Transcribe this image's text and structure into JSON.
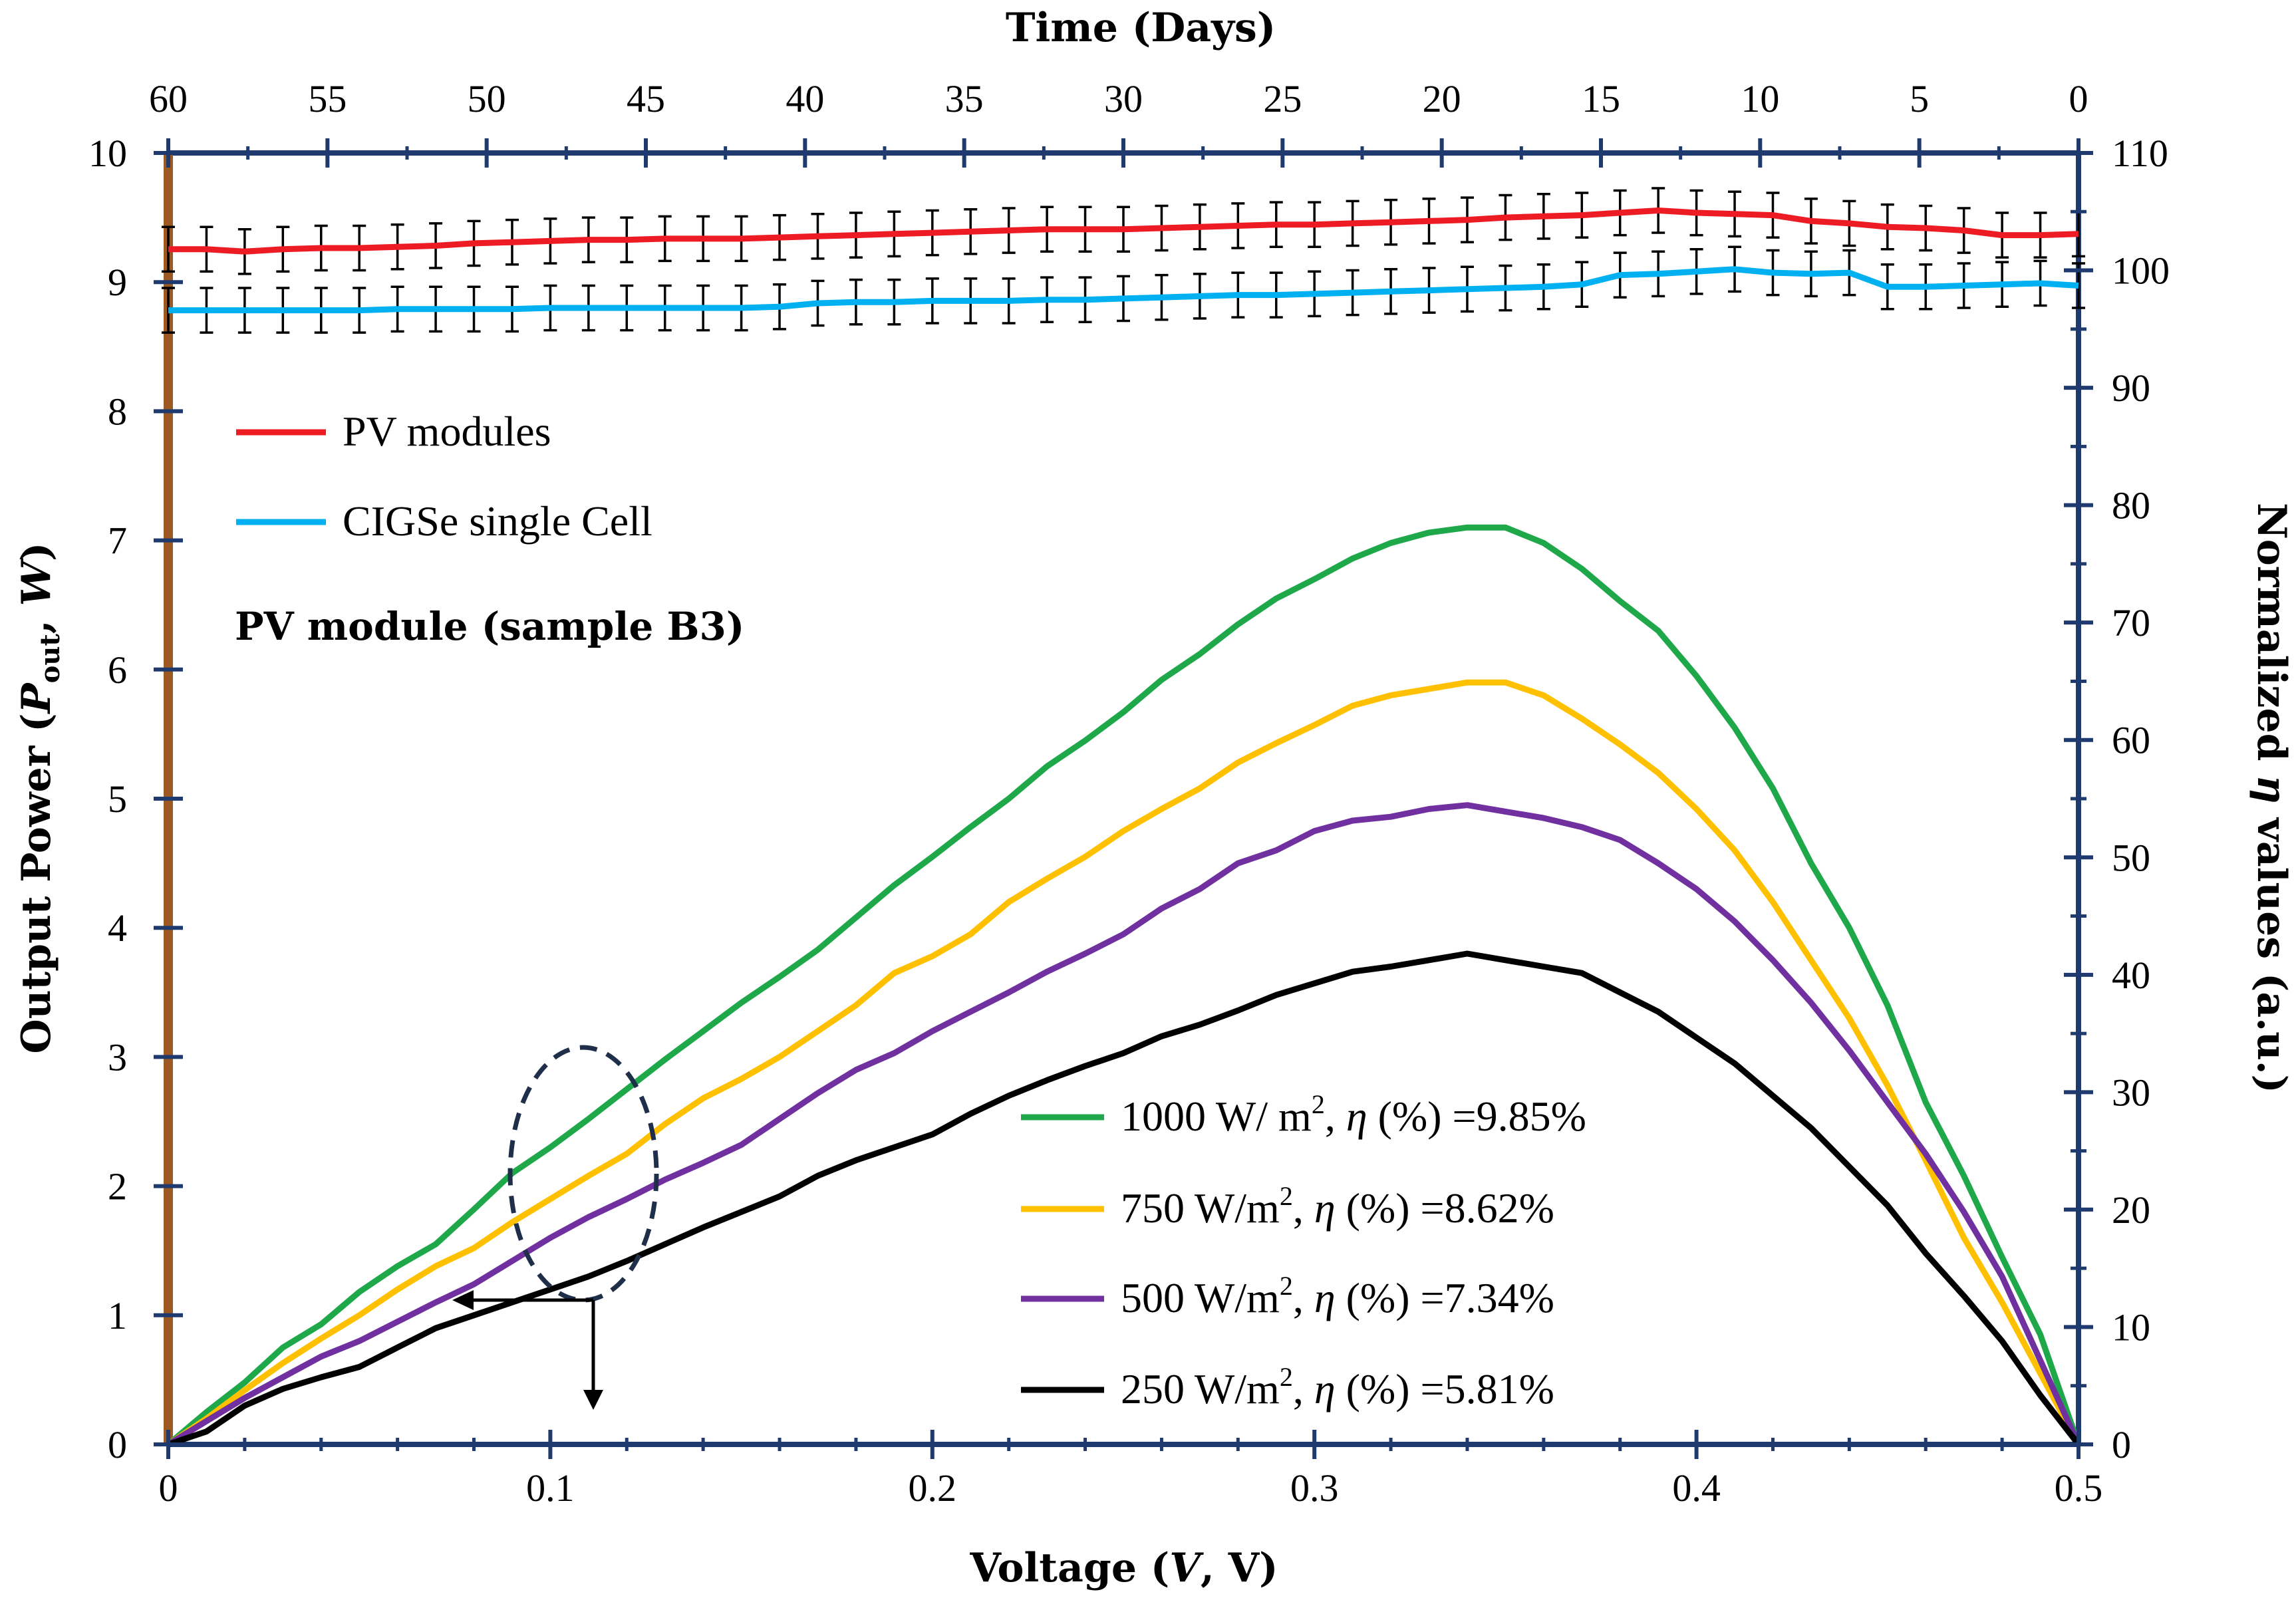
{
  "colors": {
    "left_axis": "#9c5a22",
    "navy_axis": "#1f3a6e",
    "pv_modules": "#ed1c24",
    "cigse_cell": "#00b0f0",
    "g1000": "#1fa84a",
    "g750": "#ffc000",
    "g500": "#7030a0",
    "g250": "#000000",
    "error_bar": "#000000",
    "ellipse": "#1f2f4a"
  },
  "chart_data": {
    "type": "line",
    "title": "",
    "annotation": "PV module (sample B3)",
    "x_bottom": {
      "label": "Voltage (V, V)",
      "label_parts": [
        "Voltage (",
        "V",
        ", V)"
      ],
      "range": [
        0,
        0.5
      ],
      "ticks": [
        0,
        0.1,
        0.2,
        0.3,
        0.4,
        0.5
      ],
      "tick_labels": [
        "0",
        "0.1",
        "0.2",
        "0.3",
        "0.4",
        "0.5"
      ]
    },
    "x_top": {
      "label": "Time (Days)",
      "range": [
        60,
        0
      ],
      "ticks": [
        60,
        55,
        50,
        45,
        40,
        35,
        30,
        25,
        20,
        15,
        10,
        5,
        0
      ],
      "tick_labels": [
        "60",
        "55",
        "50",
        "45",
        "40",
        "35",
        "30",
        "25",
        "20",
        "15",
        "10",
        "5",
        "0"
      ]
    },
    "y_left": {
      "label": "Output Power (Pout, W)",
      "label_parts": [
        "Output Power (",
        "P",
        "out",
        ", ",
        "W",
        ")"
      ],
      "range": [
        0,
        10
      ],
      "ticks": [
        0,
        1,
        2,
        3,
        4,
        5,
        6,
        7,
        8,
        9,
        10
      ],
      "tick_labels": [
        "0",
        "1",
        "2",
        "3",
        "4",
        "5",
        "6",
        "7",
        "8",
        "9",
        "10"
      ]
    },
    "y_right": {
      "label": "Normalized η values (a.u.)",
      "label_parts": [
        "Normalized ",
        "η",
        " values (a.u.)"
      ],
      "range": [
        0,
        110
      ],
      "ticks": [
        0,
        10,
        20,
        30,
        40,
        50,
        60,
        70,
        80,
        90,
        100,
        110
      ],
      "tick_labels": [
        "0",
        "10",
        "20",
        "30",
        "40",
        "50",
        "60",
        "70",
        "80",
        "90",
        "100",
        "110"
      ]
    },
    "power_series": [
      {
        "name": "1000 W/ m2, η (%) =9.85%",
        "legend_parts": [
          "1000 W/ m",
          "2",
          ", ",
          "η",
          " (%) =9.85%"
        ],
        "color_key": "g1000",
        "x": [
          0,
          0.01,
          0.02,
          0.03,
          0.04,
          0.05,
          0.06,
          0.07,
          0.08,
          0.09,
          0.1,
          0.11,
          0.12,
          0.13,
          0.14,
          0.15,
          0.16,
          0.17,
          0.18,
          0.19,
          0.2,
          0.21,
          0.22,
          0.23,
          0.24,
          0.25,
          0.26,
          0.27,
          0.28,
          0.29,
          0.3,
          0.31,
          0.32,
          0.33,
          0.34,
          0.35,
          0.36,
          0.37,
          0.38,
          0.39,
          0.4,
          0.41,
          0.42,
          0.43,
          0.44,
          0.45,
          0.46,
          0.47,
          0.48,
          0.49,
          0.5
        ],
        "y": [
          0,
          0.25,
          0.48,
          0.75,
          0.93,
          1.18,
          1.38,
          1.55,
          1.82,
          2.1,
          2.3,
          2.52,
          2.75,
          2.98,
          3.2,
          3.42,
          3.62,
          3.83,
          4.08,
          4.33,
          4.55,
          4.78,
          5.0,
          5.25,
          5.45,
          5.67,
          5.92,
          6.12,
          6.35,
          6.55,
          6.7,
          6.86,
          6.98,
          7.06,
          7.1,
          7.1,
          6.98,
          6.78,
          6.53,
          6.3,
          5.95,
          5.55,
          5.08,
          4.5,
          4.0,
          3.4,
          2.65,
          2.08,
          1.45,
          0.85,
          0
        ]
      },
      {
        "name": "750 W/m2, η (%) =8.62%",
        "legend_parts": [
          "750 W/m",
          "2",
          ", ",
          "η",
          " (%) =8.62%"
        ],
        "color_key": "g750",
        "x": [
          0,
          0.01,
          0.02,
          0.03,
          0.04,
          0.05,
          0.06,
          0.07,
          0.08,
          0.09,
          0.1,
          0.11,
          0.12,
          0.13,
          0.14,
          0.15,
          0.16,
          0.17,
          0.18,
          0.19,
          0.2,
          0.21,
          0.22,
          0.23,
          0.24,
          0.25,
          0.26,
          0.27,
          0.28,
          0.29,
          0.3,
          0.31,
          0.32,
          0.33,
          0.34,
          0.35,
          0.36,
          0.37,
          0.38,
          0.39,
          0.4,
          0.41,
          0.42,
          0.43,
          0.44,
          0.45,
          0.46,
          0.47,
          0.48,
          0.49,
          0.5
        ],
        "y": [
          0,
          0.2,
          0.42,
          0.63,
          0.82,
          1.0,
          1.2,
          1.38,
          1.52,
          1.72,
          1.9,
          2.08,
          2.25,
          2.48,
          2.68,
          2.83,
          3.0,
          3.2,
          3.4,
          3.65,
          3.78,
          3.95,
          4.2,
          4.38,
          4.55,
          4.75,
          4.92,
          5.08,
          5.28,
          5.43,
          5.57,
          5.72,
          5.8,
          5.85,
          5.9,
          5.9,
          5.8,
          5.62,
          5.42,
          5.2,
          4.92,
          4.6,
          4.2,
          3.75,
          3.3,
          2.78,
          2.2,
          1.6,
          1.1,
          0.55,
          0
        ]
      },
      {
        "name": "500 W/m2, η (%) =7.34%",
        "legend_parts": [
          "500 W/m",
          "2",
          ", ",
          "η",
          " (%) =7.34%"
        ],
        "color_key": "g500",
        "x": [
          0,
          0.01,
          0.02,
          0.03,
          0.04,
          0.05,
          0.06,
          0.07,
          0.08,
          0.09,
          0.1,
          0.11,
          0.12,
          0.13,
          0.14,
          0.15,
          0.16,
          0.17,
          0.18,
          0.19,
          0.2,
          0.21,
          0.22,
          0.23,
          0.24,
          0.25,
          0.26,
          0.27,
          0.28,
          0.29,
          0.3,
          0.31,
          0.32,
          0.33,
          0.34,
          0.35,
          0.36,
          0.37,
          0.38,
          0.39,
          0.4,
          0.41,
          0.42,
          0.43,
          0.44,
          0.45,
          0.46,
          0.47,
          0.48,
          0.49,
          0.5
        ],
        "y": [
          0,
          0.18,
          0.36,
          0.52,
          0.68,
          0.8,
          0.95,
          1.1,
          1.24,
          1.42,
          1.6,
          1.76,
          1.9,
          2.05,
          2.18,
          2.32,
          2.52,
          2.72,
          2.9,
          3.03,
          3.2,
          3.35,
          3.5,
          3.66,
          3.8,
          3.95,
          4.15,
          4.3,
          4.5,
          4.6,
          4.75,
          4.83,
          4.86,
          4.92,
          4.95,
          4.9,
          4.85,
          4.78,
          4.68,
          4.5,
          4.3,
          4.05,
          3.75,
          3.42,
          3.05,
          2.65,
          2.25,
          1.8,
          1.3,
          0.65,
          0
        ]
      },
      {
        "name": "250 W/m2, η (%) =5.81%",
        "legend_parts": [
          "250 W/m",
          "2",
          ", ",
          "η",
          " (%) =5.81%"
        ],
        "color_key": "g250",
        "x": [
          0,
          0.01,
          0.02,
          0.03,
          0.04,
          0.05,
          0.06,
          0.07,
          0.08,
          0.09,
          0.1,
          0.11,
          0.12,
          0.13,
          0.14,
          0.15,
          0.16,
          0.17,
          0.18,
          0.19,
          0.2,
          0.21,
          0.22,
          0.23,
          0.24,
          0.25,
          0.26,
          0.27,
          0.28,
          0.29,
          0.3,
          0.31,
          0.32,
          0.33,
          0.34,
          0.35,
          0.36,
          0.37,
          0.38,
          0.39,
          0.4,
          0.41,
          0.42,
          0.43,
          0.44,
          0.45,
          0.46,
          0.47,
          0.48,
          0.49,
          0.5
        ],
        "y": [
          0,
          0.1,
          0.3,
          0.43,
          0.52,
          0.6,
          0.75,
          0.9,
          1.0,
          1.1,
          1.2,
          1.3,
          1.42,
          1.55,
          1.68,
          1.8,
          1.92,
          2.08,
          2.2,
          2.3,
          2.4,
          2.56,
          2.7,
          2.82,
          2.93,
          3.03,
          3.16,
          3.25,
          3.36,
          3.48,
          3.57,
          3.66,
          3.7,
          3.75,
          3.8,
          3.75,
          3.7,
          3.65,
          3.5,
          3.35,
          3.15,
          2.95,
          2.7,
          2.45,
          2.15,
          1.85,
          1.48,
          1.15,
          0.8,
          0.38,
          0
        ]
      }
    ],
    "time_series": [
      {
        "name": "PV modules",
        "color_key": "pv_modules",
        "axis": "y_right",
        "days": [
          60,
          58.8,
          57.6,
          56.4,
          55.2,
          54,
          52.8,
          51.6,
          50.4,
          49.2,
          48,
          46.8,
          45.6,
          44.4,
          43.2,
          42,
          40.8,
          39.6,
          38.4,
          37.2,
          36,
          34.8,
          33.6,
          32.4,
          31.2,
          30,
          28.8,
          27.6,
          26.4,
          25.2,
          24,
          22.8,
          21.6,
          20.4,
          19.2,
          18,
          16.8,
          15.6,
          14.4,
          13.2,
          12,
          10.8,
          9.6,
          8.4,
          7.2,
          6,
          4.8,
          3.6,
          2.4,
          1.2,
          0
        ],
        "values": [
          101.8,
          101.8,
          101.6,
          101.8,
          101.9,
          101.9,
          102.0,
          102.1,
          102.3,
          102.4,
          102.5,
          102.6,
          102.6,
          102.7,
          102.7,
          102.7,
          102.8,
          102.9,
          103.0,
          103.1,
          103.2,
          103.3,
          103.4,
          103.5,
          103.5,
          103.5,
          103.6,
          103.7,
          103.8,
          103.9,
          103.9,
          104.0,
          104.1,
          104.2,
          104.3,
          104.5,
          104.6,
          104.7,
          104.9,
          105.1,
          104.9,
          104.8,
          104.7,
          104.2,
          104.0,
          103.7,
          103.6,
          103.4,
          103.0,
          103.0,
          103.1
        ],
        "error": 1.9
      },
      {
        "name": "CIGSe single Cell",
        "color_key": "cigse_cell",
        "axis": "y_right",
        "days": [
          60,
          58.8,
          57.6,
          56.4,
          55.2,
          54,
          52.8,
          51.6,
          50.4,
          49.2,
          48,
          46.8,
          45.6,
          44.4,
          43.2,
          42,
          40.8,
          39.6,
          38.4,
          37.2,
          36,
          34.8,
          33.6,
          32.4,
          31.2,
          30,
          28.8,
          27.6,
          26.4,
          25.2,
          24,
          22.8,
          21.6,
          20.4,
          19.2,
          18,
          16.8,
          15.6,
          14.4,
          13.2,
          12,
          10.8,
          9.6,
          8.4,
          7.2,
          6,
          4.8,
          3.6,
          2.4,
          1.2,
          0
        ],
        "values": [
          96.6,
          96.6,
          96.6,
          96.6,
          96.6,
          96.6,
          96.7,
          96.7,
          96.7,
          96.7,
          96.8,
          96.8,
          96.8,
          96.8,
          96.8,
          96.8,
          96.9,
          97.2,
          97.3,
          97.3,
          97.4,
          97.4,
          97.4,
          97.5,
          97.5,
          97.6,
          97.7,
          97.8,
          97.9,
          97.9,
          98.0,
          98.1,
          98.2,
          98.3,
          98.4,
          98.5,
          98.6,
          98.8,
          99.6,
          99.7,
          99.9,
          100.1,
          99.8,
          99.7,
          99.8,
          98.6,
          98.6,
          98.7,
          98.8,
          98.9,
          98.7
        ],
        "error": 1.9
      }
    ],
    "time_legend": [
      {
        "label": "PV modules",
        "color_key": "pv_modules"
      },
      {
        "label": "CIGSe single Cell",
        "color_key": "cigse_cell"
      }
    ]
  }
}
